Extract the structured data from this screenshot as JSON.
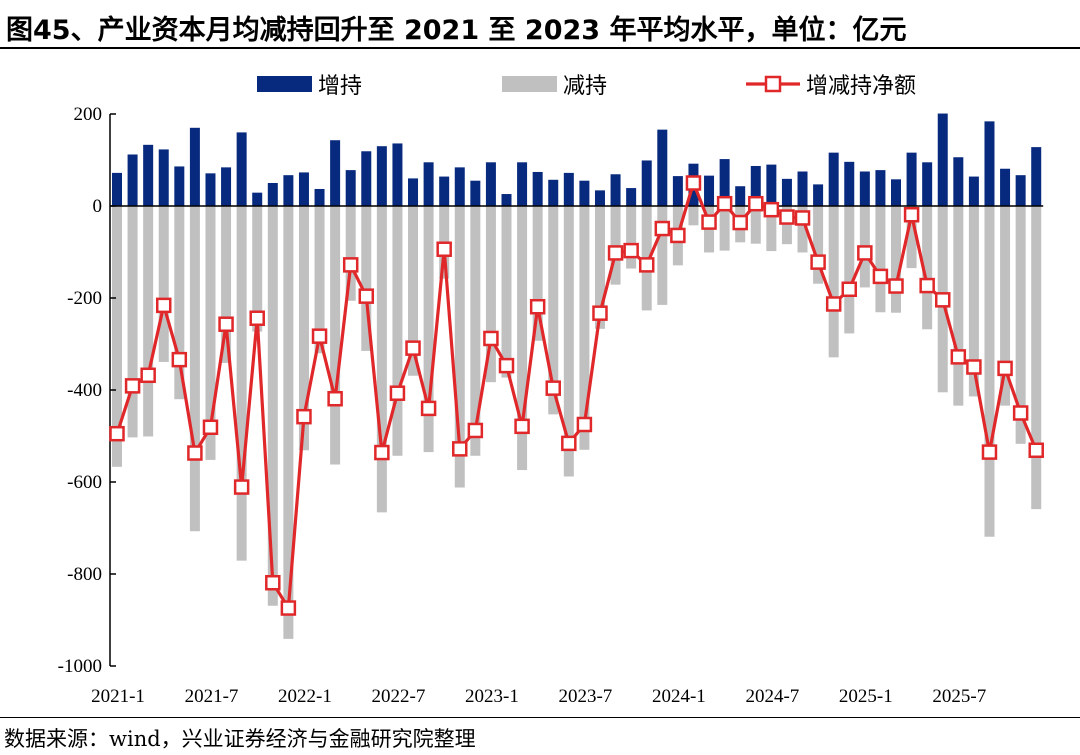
{
  "title": "图45、产业资本月均减持回升至 2021 至 2023 年平均水平，单位：亿元",
  "footer": "数据来源：wind，兴业证券经济与金融研究院整理",
  "colors": {
    "increase": "#082a7e",
    "decrease": "#c0c0c0",
    "net": "#e0282a"
  },
  "chart_data": {
    "type": "bar",
    "title": "",
    "xlabel": "",
    "ylabel": "",
    "ylim": [
      -1000,
      200
    ],
    "yticks": [
      200,
      0,
      -200,
      -400,
      -600,
      -800,
      -1000
    ],
    "ytick_labels": [
      "200",
      "0",
      "-200",
      "-400",
      "-600",
      "-800",
      "-1000"
    ],
    "xtick_labels": [
      "2021-1",
      "2021-7",
      "2022-1",
      "2022-7",
      "2023-1",
      "2023-7",
      "2024-1",
      "2024-7",
      "2025-1",
      "2025-7"
    ],
    "xtick_every": 6,
    "grid": false,
    "legend_position": "top",
    "categories": [
      "2021-1",
      "2021-2",
      "2021-3",
      "2021-4",
      "2021-5",
      "2021-6",
      "2021-7",
      "2021-8",
      "2021-9",
      "2021-10",
      "2021-11",
      "2021-12",
      "2022-1",
      "2022-2",
      "2022-3",
      "2022-4",
      "2022-5",
      "2022-6",
      "2022-7",
      "2022-8",
      "2022-9",
      "2022-10",
      "2022-11",
      "2022-12",
      "2023-1",
      "2023-2",
      "2023-3",
      "2023-4",
      "2023-5",
      "2023-6",
      "2023-7",
      "2023-8",
      "2023-9",
      "2023-10",
      "2023-11",
      "2023-12",
      "2024-1",
      "2024-2",
      "2024-3",
      "2024-4",
      "2024-5",
      "2024-6",
      "2024-7",
      "2024-8",
      "2024-9",
      "2024-10",
      "2024-11",
      "2024-12",
      "2025-1",
      "2025-2",
      "2025-3",
      "2025-4",
      "2025-5",
      "2025-6",
      "2025-7",
      "2025-8",
      "2025-9",
      "2025-10",
      "2025-11",
      "2025-12"
    ],
    "series": [
      {
        "name": "增持",
        "type": "bar",
        "values": [
          72,
          112,
          133,
          123,
          86,
          170,
          71,
          84,
          160,
          29,
          50,
          67,
          73,
          37,
          143,
          78,
          119,
          130,
          136,
          60,
          95,
          64,
          84,
          55,
          95,
          26,
          95,
          74,
          57,
          72,
          55,
          34,
          69,
          39,
          99,
          166,
          65,
          92,
          66,
          102,
          43,
          87,
          90,
          59,
          75,
          47,
          116,
          96,
          75,
          78,
          58,
          116,
          95,
          201,
          106,
          64,
          184,
          81,
          67,
          128
        ]
      },
      {
        "name": "减持",
        "type": "bar",
        "values": [
          -567,
          -503,
          -501,
          -339,
          -420,
          -707,
          -552,
          -341,
          -771,
          -273,
          -869,
          -941,
          -531,
          -320,
          -562,
          -206,
          -315,
          -666,
          -543,
          -369,
          -535,
          -158,
          -612,
          -543,
          -383,
          -373,
          -574,
          -293,
          -453,
          -588,
          -530,
          -267,
          -171,
          -136,
          -227,
          -215,
          -129,
          -42,
          -101,
          -97,
          -79,
          -82,
          -98,
          -83,
          -101,
          -169,
          -329,
          -277,
          -177,
          -231,
          -232,
          -135,
          -268,
          -405,
          -434,
          -414,
          -719,
          -434,
          -517,
          -659
        ]
      },
      {
        "name": "增减持净额",
        "type": "line",
        "marker": "square",
        "values": [
          -495,
          -391,
          -368,
          -216,
          -334,
          -537,
          -481,
          -257,
          -611,
          -244,
          -819,
          -874,
          -458,
          -283,
          -419,
          -128,
          -196,
          -536,
          -407,
          -309,
          -440,
          -94,
          -528,
          -488,
          -288,
          -347,
          -479,
          -219,
          -396,
          -516,
          -475,
          -233,
          -102,
          -97,
          -128,
          -49,
          -64,
          50,
          -35,
          5,
          -36,
          5,
          -8,
          -24,
          -26,
          -122,
          -213,
          -181,
          -102,
          -153,
          -174,
          -19,
          -173,
          -204,
          -328,
          -350,
          -535,
          -353,
          -450,
          -531
        ]
      }
    ]
  }
}
